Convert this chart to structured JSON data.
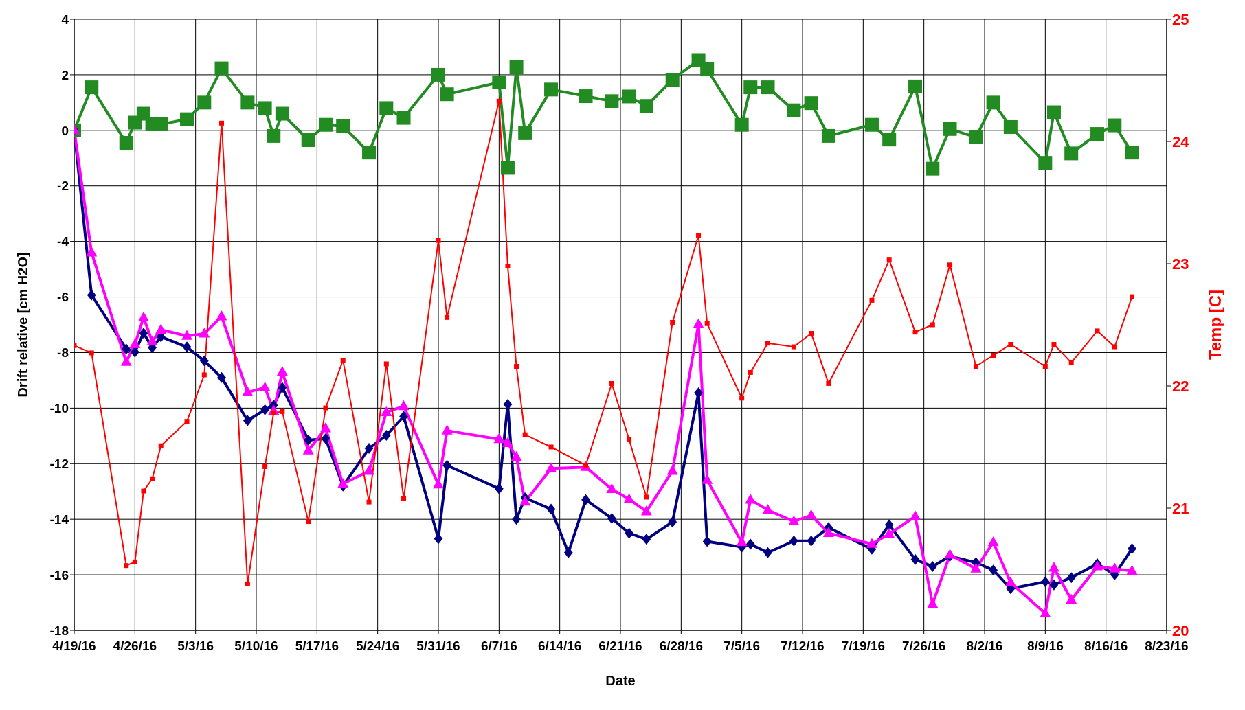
{
  "chart_data": {
    "type": "line",
    "xlabel": "Date",
    "ylabel": "Drift relative [cm H2O]",
    "y2label": "Temp [C]",
    "x": [
      "--04-19",
      "--04-21",
      "--04-25",
      "--04-26",
      "--04-27",
      "--04-28",
      "--04-29",
      "--05-02",
      "--05-04",
      "--05-06",
      "--05-09",
      "--05-11",
      "--05-12",
      "--05-13",
      "--05-16",
      "--05-18",
      "--05-20",
      "--05-23",
      "--05-25",
      "--05-27",
      "--05-31",
      "--06-01",
      "--06-07",
      "--06-08",
      "--06-09",
      "--06-10",
      "--06-13",
      "--06-17",
      "--06-20",
      "--06-22",
      "--06-24",
      "--06-27",
      "--06-30",
      "--07-01",
      "--07-05",
      "--07-06",
      "--07-08",
      "--07-11",
      "--07-13",
      "--07-15",
      "--07-20",
      "--07-22",
      "--07-25",
      "--07-27",
      "--07-29",
      "--08-01",
      "--08-03",
      "--08-05",
      "--08-09",
      "--08-10",
      "--08-12",
      "--08-15",
      "--08-17",
      "--08-19"
    ],
    "series": [
      {
        "color": "#228b22",
        "marker": "square",
        "values": [
          0,
          1.55,
          -0.45,
          0.28,
          0.6,
          0.22,
          0.22,
          0.4,
          1.0,
          2.23,
          1.0,
          0.8,
          -0.2,
          0.6,
          -0.35,
          0.2,
          0.15,
          -0.8,
          0.8,
          0.45,
          2.0,
          1.3,
          1.73,
          -1.35,
          2.27,
          -0.1,
          1.47,
          1.23,
          1.05,
          1.22,
          0.88,
          1.82,
          2.53,
          2.2,
          0.2,
          1.55,
          1.55,
          0.72,
          0.98,
          -0.2,
          0.2,
          -0.33,
          1.58,
          -1.38,
          0.05,
          -0.25,
          1.0,
          0.12,
          -1.17,
          0.65,
          -0.83,
          -0.13,
          0.18,
          -0.8
        ]
      },
      {
        "color": "#000080",
        "marker": "diamond",
        "x": [
          "--04-19",
          "--04-21",
          "--04-25",
          "--04-26",
          "--04-27",
          "--04-28",
          "--04-29",
          "--05-02",
          "--05-04",
          "--05-06",
          "--05-09",
          "--05-11",
          "--05-12",
          "--05-13",
          "--05-16",
          "--05-18",
          "--05-20",
          "--05-23",
          "--05-25",
          "--05-27",
          "--05-31",
          "--06-01",
          "--06-07",
          "--06-08",
          "--06-09",
          "--06-10",
          "--06-13",
          "--06-15",
          "--06-17",
          "--06-20",
          "--06-22",
          "--06-24",
          "--06-27",
          "--06-30",
          "--07-01",
          "--07-05",
          "--07-06",
          "--07-08",
          "--07-11",
          "--07-13",
          "--07-15",
          "--07-20",
          "--07-22",
          "--07-25",
          "--07-27",
          "--07-29",
          "--08-01",
          "--08-03",
          "--08-05",
          "--08-09",
          "--08-10",
          "--08-12",
          "--08-15",
          "--08-17",
          "--08-19"
        ],
        "values": [
          0,
          -5.93,
          -7.87,
          -7.98,
          -7.3,
          -7.82,
          -7.43,
          -7.8,
          -8.3,
          -8.9,
          -10.45,
          -10.06,
          -9.9,
          -9.26,
          -11.15,
          -11.1,
          -12.8,
          -11.45,
          -10.98,
          -10.3,
          -14.7,
          -12.06,
          -12.9,
          -9.87,
          -14.0,
          -13.23,
          -13.64,
          -15.2,
          -13.3,
          -13.97,
          -14.5,
          -14.72,
          -14.1,
          -9.45,
          -14.8,
          -15.0,
          -14.9,
          -15.2,
          -14.78,
          -14.78,
          -14.3,
          -15.08,
          -14.2,
          -15.45,
          -15.7,
          -15.33,
          -15.56,
          -15.83,
          -16.5,
          -16.25,
          -16.36,
          -16.1,
          -15.6,
          -16.0,
          -15.06
        ]
      },
      {
        "color": "#ff00ff",
        "marker": "triangle",
        "values": [
          0,
          -4.4,
          -8.34,
          -7.7,
          -6.74,
          -7.6,
          -7.18,
          -7.4,
          -7.32,
          -6.7,
          -9.43,
          -9.26,
          -10.1,
          -8.7,
          -11.53,
          -10.73,
          -12.73,
          -12.26,
          -10.15,
          -9.93,
          -12.75,
          -10.81,
          -11.12,
          -11.26,
          -11.76,
          -13.37,
          -12.17,
          -12.12,
          -12.92,
          -13.28,
          -13.72,
          -12.26,
          -6.98,
          -12.59,
          -14.83,
          -13.3,
          -13.67,
          -14.08,
          -13.86,
          -14.5,
          -14.89,
          -14.53,
          -13.9,
          -17.05,
          -15.28,
          -15.78,
          -14.83,
          -16.28,
          -17.39,
          -15.75,
          -16.9,
          -15.7,
          -15.78,
          -15.86
        ]
      },
      {
        "color": "#ff0000",
        "marker": "square",
        "axis": "y2",
        "values": [
          22.33,
          22.27,
          20.53,
          20.56,
          21.14,
          21.24,
          21.51,
          21.71,
          22.09,
          24.15,
          20.38,
          21.34,
          21.78,
          21.79,
          20.89,
          21.82,
          22.21,
          21.05,
          22.18,
          21.08,
          23.19,
          22.56,
          24.33,
          22.98,
          22.16,
          21.6,
          21.5,
          21.35,
          22.02,
          21.56,
          21.09,
          22.52,
          23.23,
          22.51,
          21.9,
          22.11,
          22.35,
          22.32,
          22.43,
          22.02,
          22.7,
          23.03,
          22.44,
          22.5,
          22.99,
          22.16,
          22.25,
          22.34,
          22.16,
          22.34,
          22.19,
          22.45,
          22.32,
          22.73
        ]
      }
    ],
    "xlim": [
      "--04-19",
      "--08-23"
    ],
    "xticks": [
      {
        "value": "--04-19",
        "label": "4/19/16"
      },
      {
        "value": "--04-26",
        "label": "4/26/16"
      },
      {
        "value": "--05-03",
        "label": "5/3/16"
      },
      {
        "value": "--05-10",
        "label": "5/10/16"
      },
      {
        "value": "--05-17",
        "label": "5/17/16"
      },
      {
        "value": "--05-24",
        "label": "5/24/16"
      },
      {
        "value": "--05-31",
        "label": "5/31/16"
      },
      {
        "value": "--06-07",
        "label": "6/7/16"
      },
      {
        "value": "--06-14",
        "label": "6/14/16"
      },
      {
        "value": "--06-21",
        "label": "6/21/16"
      },
      {
        "value": "--06-28",
        "label": "6/28/16"
      },
      {
        "value": "--07-05",
        "label": "7/5/16"
      },
      {
        "value": "--07-12",
        "label": "7/12/16"
      },
      {
        "value": "--07-19",
        "label": "7/19/16"
      },
      {
        "value": "--07-26",
        "label": "7/26/16"
      },
      {
        "value": "--08-02",
        "label": "8/2/16"
      },
      {
        "value": "--08-09",
        "label": "8/9/16"
      },
      {
        "value": "--08-16",
        "label": "8/16/16"
      },
      {
        "value": "--08-23",
        "label": "8/23/16"
      }
    ],
    "ylim": [
      -18,
      4
    ],
    "yticks": [
      -18,
      -16,
      -14,
      -12,
      -10,
      -8,
      -6,
      -4,
      -2,
      0,
      2,
      4
    ],
    "y2lim": [
      20,
      25
    ],
    "y2ticks": [
      20,
      21,
      22,
      23,
      24,
      25
    ],
    "grid": true
  }
}
